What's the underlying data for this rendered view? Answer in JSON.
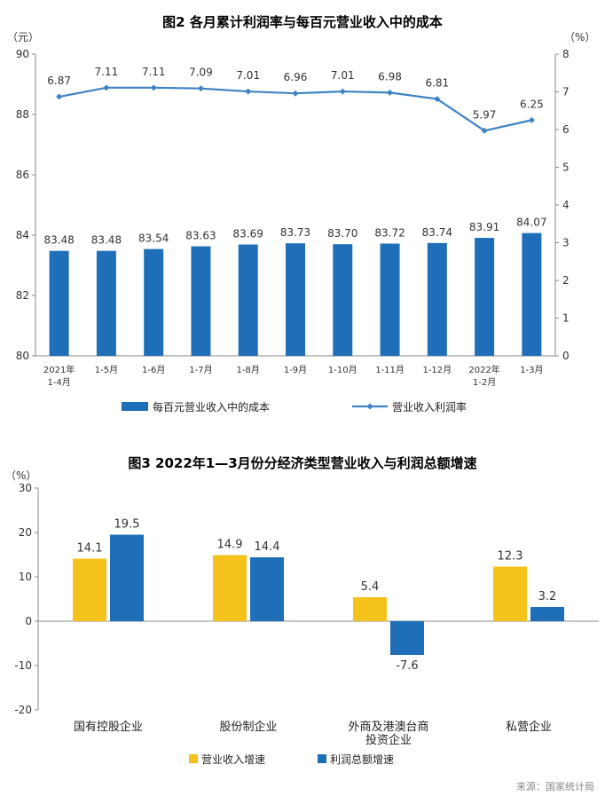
{
  "source": "来源：国家统计局",
  "colors": {
    "blue": "#1f6fb8",
    "orange": "#f5c21b",
    "line": "#3f83c4",
    "axis": "#888888"
  },
  "chart_data": [
    {
      "type": "bar+line",
      "title": "图2  各月累计利润率与每百元营业收入中的成本",
      "left_unit": "（元）",
      "right_unit": "（%）",
      "categories": [
        [
          "2021年",
          "1-4月"
        ],
        [
          "1-5月"
        ],
        [
          "1-6月"
        ],
        [
          "1-7月"
        ],
        [
          "1-8月"
        ],
        [
          "1-9月"
        ],
        [
          "1-10月"
        ],
        [
          "1-11月"
        ],
        [
          "1-12月"
        ],
        [
          "2022年",
          "1-2月"
        ],
        [
          "1-3月"
        ]
      ],
      "bar_series": {
        "name": "每百元营业收入中的成本",
        "values": [
          83.48,
          83.48,
          83.54,
          83.63,
          83.69,
          83.73,
          83.7,
          83.72,
          83.74,
          83.91,
          84.07
        ],
        "labels": [
          "83.48",
          "83.48",
          "83.54",
          "83.63",
          "83.69",
          "83.73",
          "83.70",
          "83.72",
          "83.74",
          "83.91",
          "84.07"
        ]
      },
      "line_series": {
        "name": "营业收入利润率",
        "values": [
          6.87,
          7.11,
          7.11,
          7.09,
          7.01,
          6.96,
          7.01,
          6.98,
          6.81,
          5.97,
          6.25
        ],
        "labels": [
          "6.87",
          "7.11",
          "7.11",
          "7.09",
          "7.01",
          "6.96",
          "7.01",
          "6.98",
          "6.81",
          "5.97",
          "6.25"
        ]
      },
      "ylim_left": [
        80,
        90
      ],
      "yticks_left": [
        80,
        82,
        84,
        86,
        88,
        90
      ],
      "ylim_right": [
        0,
        8
      ],
      "yticks_right": [
        0,
        1,
        2,
        3,
        4,
        5,
        6,
        7,
        8
      ],
      "legend_placement": "bottom"
    },
    {
      "type": "bar",
      "title": "图3  2022年1—3月份分经济类型营业收入与利润总额增速",
      "unit": "（%）",
      "categories": [
        [
          "国有控股企业"
        ],
        [
          "股份制企业"
        ],
        [
          "外商及港澳台商",
          "投资企业"
        ],
        [
          "私营企业"
        ]
      ],
      "series": [
        {
          "name": "营业收入增速",
          "values": [
            14.1,
            14.9,
            5.4,
            12.3
          ],
          "labels": [
            "14.1",
            "14.9",
            "5.4",
            "12.3"
          ]
        },
        {
          "name": "利润总额增速",
          "values": [
            19.5,
            14.4,
            -7.6,
            3.2
          ],
          "labels": [
            "19.5",
            "14.4",
            "-7.6",
            "3.2"
          ]
        }
      ],
      "ylim": [
        -20,
        30
      ],
      "yticks": [
        -20,
        -10,
        0,
        10,
        20,
        30
      ],
      "legend_placement": "bottom"
    }
  ]
}
